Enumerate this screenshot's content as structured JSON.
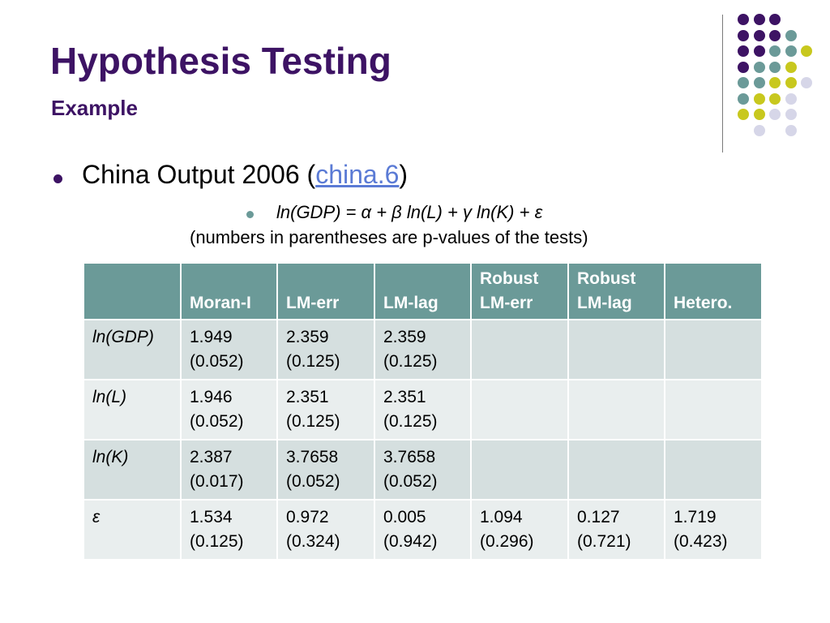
{
  "slide": {
    "title": "Hypothesis Testing",
    "subtitle": "Example"
  },
  "bullet": {
    "text_before": "China Output 2006 (",
    "link_text": "china.6",
    "text_after": ")"
  },
  "sub_bullet": {
    "equation_parts": [
      "ln(GDP) = ",
      "α",
      " + ",
      "β",
      " ln(L) + ",
      "γ",
      " ln(K) + ",
      "ε"
    ],
    "note": "(numbers in parentheses are p-values of the tests)"
  },
  "table": {
    "headers": [
      "",
      "Moran-I",
      "LM-err",
      "LM-lag",
      "Robust\nLM-err",
      "Robust\nLM-lag",
      "Hetero."
    ],
    "rows": [
      {
        "label": "ln(GDP)",
        "cells": [
          "1.949\n(0.052)",
          "2.359\n(0.125)",
          "2.359\n(0.125)",
          "",
          "",
          ""
        ]
      },
      {
        "label": "ln(L)",
        "cells": [
          "1.946\n(0.052)",
          "2.351\n(0.125)",
          "2.351\n(0.125)",
          "",
          "",
          ""
        ]
      },
      {
        "label": "ln(K)",
        "cells": [
          "2.387\n(0.017)",
          "3.7658\n(0.052)",
          "3.7658\n(0.052)",
          "",
          "",
          ""
        ]
      },
      {
        "label": "ε",
        "cells": [
          "1.534\n(0.125)",
          "0.972\n(0.324)",
          "0.005\n(0.942)",
          "1.094\n(0.296)",
          "0.127\n(0.721)",
          "1.719\n(0.423)"
        ]
      }
    ]
  },
  "colors": {
    "title": "#3d1364",
    "header_bg": "#6b9a98",
    "row_odd": "#d5dfdf",
    "row_even": "#e9eeee",
    "link": "#5b7bd5",
    "dot_purple": "#3d1364",
    "dot_teal": "#6b9a98",
    "dot_yellow": "#c8c81e",
    "dot_lavender": "#d6d6e8"
  },
  "decoration": {
    "dot_grid": [
      [
        "purple",
        "purple",
        "purple",
        "",
        ""
      ],
      [
        "purple",
        "purple",
        "purple",
        "teal",
        ""
      ],
      [
        "purple",
        "purple",
        "teal",
        "teal",
        "yellow"
      ],
      [
        "purple",
        "teal",
        "teal",
        "yellow",
        ""
      ],
      [
        "teal",
        "teal",
        "yellow",
        "yellow",
        "lavender"
      ],
      [
        "teal",
        "yellow",
        "yellow",
        "lavender",
        ""
      ],
      [
        "yellow",
        "yellow",
        "lavender",
        "lavender",
        ""
      ],
      [
        "",
        "lavender",
        "",
        "lavender",
        ""
      ]
    ]
  }
}
